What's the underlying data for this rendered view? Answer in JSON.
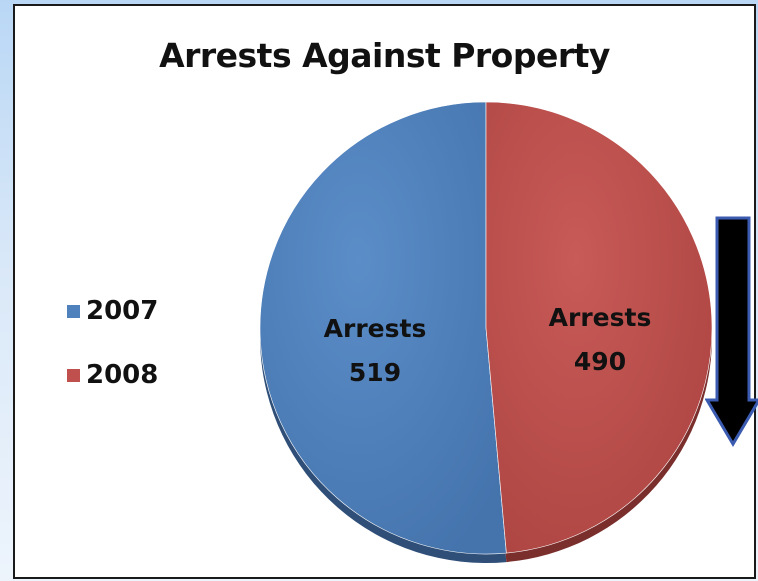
{
  "chart_data": {
    "type": "pie",
    "title": "Arrests Against Property",
    "categories": [
      "2007",
      "2008"
    ],
    "values": [
      519,
      490
    ],
    "slice_labels": [
      {
        "name": "Arrests",
        "value": "519"
      },
      {
        "name": "Arrests",
        "value": "490"
      }
    ],
    "colors": [
      "#4f81bd",
      "#c0504d"
    ],
    "legend_position": "left"
  },
  "annotation": {
    "icon": "down-arrow-icon",
    "color": "#000000",
    "accent": "#3b5bb0"
  }
}
